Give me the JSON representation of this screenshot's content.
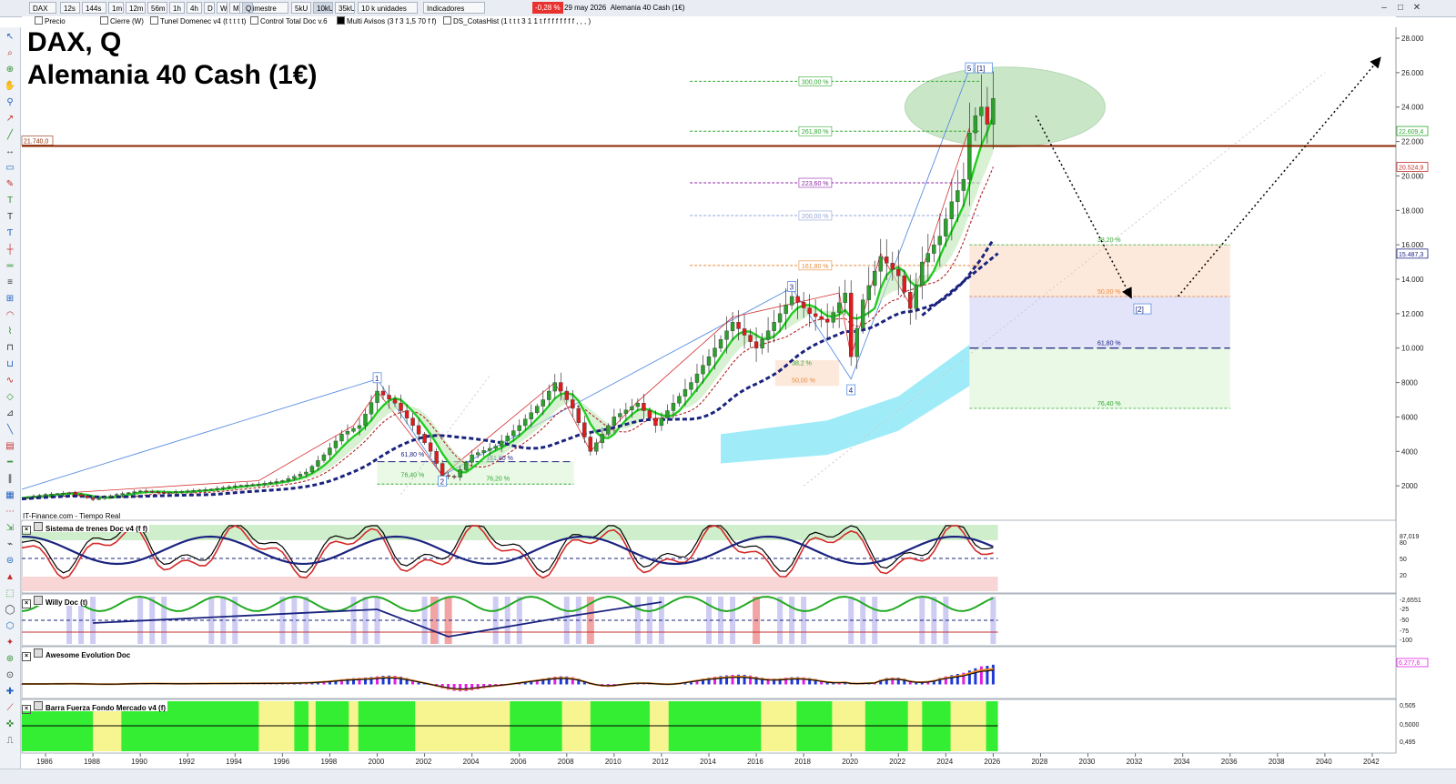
{
  "toolbar": {
    "symbol": "DAX",
    "timeframes": [
      "12s",
      "144s",
      "1m",
      "12m",
      "56m",
      "1h",
      "4h",
      "D",
      "W",
      "M",
      "Q"
    ],
    "active_timeframe": "Q",
    "period": "1 trimestre",
    "units_buttons": [
      "5kU",
      "10kU",
      "35kU"
    ],
    "units_select": "10 k unidades",
    "indicators_label": "Indicadores",
    "change": "-0,28 %",
    "date": "29 may 2026",
    "instrument": "Alemania 40 Cash (1€)"
  },
  "legend_items": [
    "Precio",
    "Cierre (W)",
    "Tunel Domenec v4 (t t t t t)",
    "Control Total Doc v.6",
    "Multi Avisos (3 f 3 1,5 70 f f)",
    "DS_CotasHist (1 t t t 3 1 1 t f f f f f f f f , , , )"
  ],
  "chart_title_line1": "DAX, Q",
  "chart_title_line2": "Alemania 40 Cash (1€)",
  "source_label": "IT-Finance.com - Tiempo Real",
  "colors": {
    "bull": "#2ca02c",
    "bear": "#e31a1c",
    "trend_green": "#22cc22",
    "trend_red": "#cc2222",
    "navy": "#1a237e",
    "support": "#8b2500",
    "cloud": "#7fe6f5"
  },
  "chart_data": {
    "type": "candlestick",
    "xlabel": "",
    "ylabel": "",
    "ylim": [
      0,
      28000
    ],
    "xlim": [
      1985,
      2043
    ],
    "x_ticks": [
      1986,
      1988,
      1990,
      1992,
      1994,
      1996,
      1998,
      2000,
      2002,
      2004,
      2006,
      2008,
      2010,
      2012,
      2014,
      2016,
      2018,
      2020,
      2022,
      2024,
      2026,
      2028,
      2030,
      2032,
      2034,
      2036,
      2038,
      2040,
      2042
    ],
    "y_ticks": [
      2000,
      4000,
      6000,
      8000,
      10000,
      12000,
      14000,
      16000,
      18000,
      20000,
      22000,
      24000,
      26000,
      28000
    ],
    "closes": [
      {
        "x": 1985.0,
        "close": 1300
      },
      {
        "x": 1986.0,
        "close": 1500
      },
      {
        "x": 1987.0,
        "close": 1600
      },
      {
        "x": 1988.0,
        "close": 1200
      },
      {
        "x": 1989.0,
        "close": 1500
      },
      {
        "x": 1990.0,
        "close": 1700
      },
      {
        "x": 1991.0,
        "close": 1600
      },
      {
        "x": 1992.0,
        "close": 1700
      },
      {
        "x": 1993.0,
        "close": 1800
      },
      {
        "x": 1994.0,
        "close": 2000
      },
      {
        "x": 1995.0,
        "close": 2100
      },
      {
        "x": 1996.0,
        "close": 2300
      },
      {
        "x": 1997.0,
        "close": 2800
      },
      {
        "x": 1997.75,
        "close": 3800
      },
      {
        "x": 1998.5,
        "close": 5000
      },
      {
        "x": 1999.25,
        "close": 5500
      },
      {
        "x": 2000.0,
        "close": 7500
      },
      {
        "x": 2000.75,
        "close": 6800
      },
      {
        "x": 2001.5,
        "close": 5500
      },
      {
        "x": 2002.25,
        "close": 4000
      },
      {
        "x": 2002.75,
        "close": 2600
      },
      {
        "x": 2003.25,
        "close": 2500
      },
      {
        "x": 2004.0,
        "close": 3800
      },
      {
        "x": 2005.0,
        "close": 4300
      },
      {
        "x": 2006.0,
        "close": 5500
      },
      {
        "x": 2007.0,
        "close": 7000
      },
      {
        "x": 2007.5,
        "close": 8000
      },
      {
        "x": 2008.25,
        "close": 6500
      },
      {
        "x": 2009.0,
        "close": 4000
      },
      {
        "x": 2010.0,
        "close": 6000
      },
      {
        "x": 2011.0,
        "close": 6800
      },
      {
        "x": 2011.75,
        "close": 5500
      },
      {
        "x": 2012.5,
        "close": 6800
      },
      {
        "x": 2013.25,
        "close": 8000
      },
      {
        "x": 2014.0,
        "close": 9500
      },
      {
        "x": 2015.0,
        "close": 11500
      },
      {
        "x": 2016.0,
        "close": 10000
      },
      {
        "x": 2016.75,
        "close": 11500
      },
      {
        "x": 2017.5,
        "close": 13000
      },
      {
        "x": 2018.25,
        "close": 12000
      },
      {
        "x": 2019.0,
        "close": 11500
      },
      {
        "x": 2019.75,
        "close": 13200
      },
      {
        "x": 2020.0,
        "close": 9500
      },
      {
        "x": 2020.5,
        "close": 12800
      },
      {
        "x": 2021.25,
        "close": 15300
      },
      {
        "x": 2022.0,
        "close": 14200
      },
      {
        "x": 2022.5,
        "close": 12300
      },
      {
        "x": 2023.0,
        "close": 15000
      },
      {
        "x": 2023.75,
        "close": 16500
      },
      {
        "x": 2024.25,
        "close": 18500
      },
      {
        "x": 2024.75,
        "close": 19800
      },
      {
        "x": 2025.0,
        "close": 22500
      },
      {
        "x": 2025.25,
        "close": 23500
      },
      {
        "x": 2025.5,
        "close": 24000
      },
      {
        "x": 2025.75,
        "close": 23000
      },
      {
        "x": 2026.0,
        "close": 24500
      }
    ],
    "fib_levels_upper": [
      {
        "label": "300,00 %",
        "value": 25500
      },
      {
        "label": "261,80 %",
        "value": 22600
      },
      {
        "label": "223,60 %",
        "value": 19600
      },
      {
        "label": "200,00 %",
        "value": 17700
      },
      {
        "label": "161,80 %",
        "value": 14800
      }
    ],
    "fib_levels_projection": [
      {
        "label": "38,20 %",
        "value": 16000
      },
      {
        "label": "50,00 %",
        "value": 13000
      },
      {
        "label": "61,80 %",
        "value": 10000
      },
      {
        "label": "76,40 %",
        "value": 6500
      }
    ],
    "fib_2002_labels": [
      "61,80 %",
      "161,80 %",
      "76,40 %",
      "76,20 %"
    ],
    "fib_2020_labels": [
      "38,2 %",
      "50,00 %"
    ],
    "support_level": {
      "label": "21.740,0",
      "value": 21740
    },
    "wave_labels": [
      {
        "label": "1",
        "x": 2000.0,
        "y": 8200
      },
      {
        "label": "2",
        "x": 2002.75,
        "y": 2200
      },
      {
        "label": "3",
        "x": 2017.5,
        "y": 13500
      },
      {
        "label": "4",
        "x": 2020.0,
        "y": 7500
      },
      {
        "label": "5",
        "x": 2025.0,
        "y": 26200
      },
      {
        "label": "[1]",
        "x": 2025.6,
        "y": 26200
      },
      {
        "label": "[2]",
        "x": 2032.3,
        "y": 12200
      }
    ],
    "price_axis_labels": [
      "22.609,4",
      "20.524,9",
      "15.487,3"
    ],
    "projection_arrows": [
      {
        "from": [
          2027.8,
          23500
        ],
        "to": [
          2031.8,
          13000
        ]
      },
      {
        "from": [
          2033.8,
          13000
        ],
        "to": [
          2042.3,
          26800
        ]
      }
    ]
  },
  "panels": {
    "trenes": {
      "title": "Sistema de trenes Doc v4 (f f)",
      "axis_labels": [
        "87,019",
        "80",
        "50",
        "20"
      ]
    },
    "willy": {
      "title": "Willy Doc (t)",
      "axis_labels": [
        "-2,6551",
        "-25",
        "-50",
        "-75",
        "-100"
      ]
    },
    "awesome": {
      "title": "Awesome Evolution Doc",
      "axis_labels": [
        "6.277,6"
      ]
    },
    "barra": {
      "title": "Barra Fuerza Fondo Mercado v4 (f)",
      "axis_labels": [
        "0,505",
        "0,5000",
        "0,495"
      ]
    }
  }
}
